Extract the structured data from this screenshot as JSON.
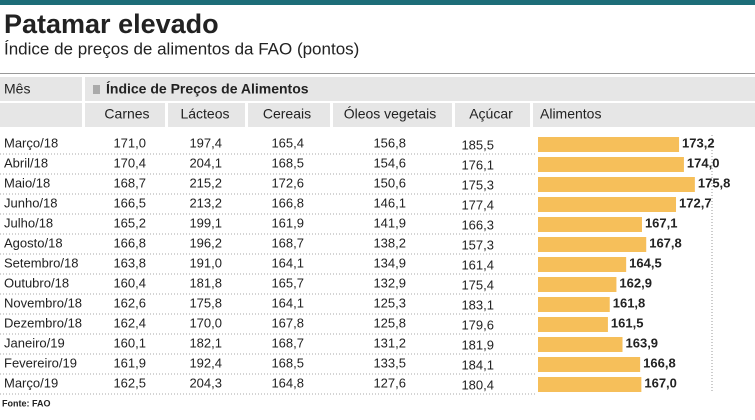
{
  "header": {
    "title": "Patamar elevado",
    "subtitle": "Índice de preços de alimentos da FAO (pontos)"
  },
  "table": {
    "row_header": "Mês",
    "group_header": "Índice de Preços de Alimentos",
    "columns": [
      "Carnes",
      "Lácteos",
      "Cereais",
      "Óleos vegetais",
      "Açúcar",
      "Alimentos"
    ],
    "rows": [
      [
        "Março/18",
        "171,0",
        "197,4",
        "165,4",
        "156,8",
        "185,5"
      ],
      [
        "Abril/18",
        "170,4",
        "204,1",
        "168,5",
        "154,6",
        "176,1"
      ],
      [
        "Maio/18",
        "168,7",
        "215,2",
        "172,6",
        "150,6",
        "175,3"
      ],
      [
        "Junho/18",
        "166,5",
        "213,2",
        "166,8",
        "146,1",
        "177,4"
      ],
      [
        "Julho/18",
        "165,2",
        "199,1",
        "161,9",
        "141,9",
        "166,3"
      ],
      [
        "Agosto/18",
        "166,8",
        "196,2",
        "168,7",
        "138,2",
        "157,3"
      ],
      [
        "Setembro/18",
        "163,8",
        "191,0",
        "164,1",
        "134,9",
        "161,4"
      ],
      [
        "Outubro/18",
        "160,4",
        "181,8",
        "165,7",
        "132,9",
        "175,4"
      ],
      [
        "Novembro/18",
        "162,6",
        "175,8",
        "164,1",
        "125,3",
        "183,1"
      ],
      [
        "Dezembro/18",
        "162,4",
        "170,0",
        "167,8",
        "125,8",
        "179,6"
      ],
      [
        "Janeiro/19",
        "160,1",
        "182,1",
        "168,7",
        "131,2",
        "181,9"
      ],
      [
        "Fevereiro/19",
        "161,9",
        "192,4",
        "168,5",
        "133,5",
        "184,1"
      ],
      [
        "Março/19",
        "162,5",
        "204,3",
        "164,8",
        "127,6",
        "180,4"
      ]
    ]
  },
  "alimentos": {
    "values": [
      173.2,
      174.0,
      175.8,
      172.7,
      167.1,
      167.8,
      164.5,
      162.9,
      161.8,
      161.5,
      163.9,
      166.8,
      167.0
    ],
    "value_labels": [
      "173,2",
      "174,0",
      "175,8",
      "172,7",
      "167,1",
      "167,8",
      "164,5",
      "162,9",
      "161,8",
      "161,5",
      "163,9",
      "166,8",
      "167,0"
    ],
    "xlim": [
      150,
      178
    ],
    "color": "#f6bf5a"
  },
  "footer": {
    "source": "Fonte: FAO"
  }
}
